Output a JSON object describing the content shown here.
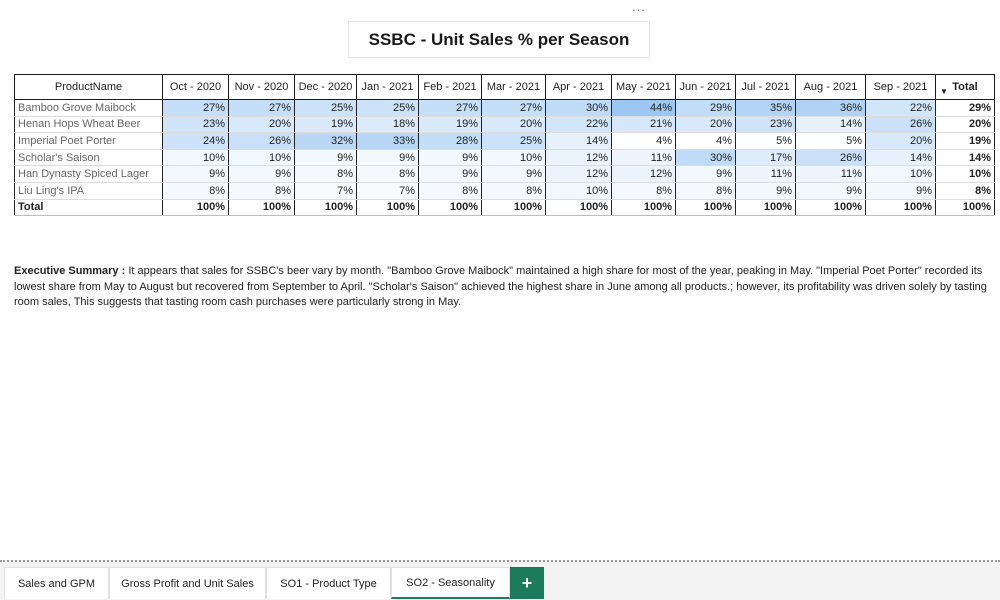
{
  "more_menu": "...",
  "report": {
    "title": "SSBC  -  Unit Sales % per Season"
  },
  "table": {
    "header_name": "ProductName",
    "columns": [
      "Oct - 2020",
      "Nov - 2020",
      "Dec - 2020",
      "Jan - 2021",
      "Feb - 2021",
      "Mar - 2021",
      "Apr - 2021",
      "May - 2021",
      "Jun - 2021",
      "Jul - 2021",
      "Aug - 2021",
      "Sep - 2021"
    ],
    "total_label": "Total",
    "rows": [
      {
        "name": "Bamboo Grove Maibock",
        "values": [
          "27%",
          "27%",
          "25%",
          "25%",
          "27%",
          "27%",
          "30%",
          "44%",
          "29%",
          "35%",
          "36%",
          "22%"
        ],
        "total": "29%"
      },
      {
        "name": "Henan Hops Wheat Beer",
        "values": [
          "23%",
          "20%",
          "19%",
          "18%",
          "19%",
          "20%",
          "22%",
          "21%",
          "20%",
          "23%",
          "14%",
          "26%"
        ],
        "total": "20%"
      },
      {
        "name": "Imperial Poet Porter",
        "values": [
          "24%",
          "26%",
          "32%",
          "33%",
          "28%",
          "25%",
          "14%",
          "4%",
          "4%",
          "5%",
          "5%",
          "20%"
        ],
        "total": "19%"
      },
      {
        "name": "Scholar's Saison",
        "values": [
          "10%",
          "10%",
          "9%",
          "9%",
          "9%",
          "10%",
          "12%",
          "11%",
          "30%",
          "17%",
          "26%",
          "14%"
        ],
        "total": "14%"
      },
      {
        "name": "Han Dynasty Spiced Lager",
        "values": [
          "9%",
          "9%",
          "8%",
          "8%",
          "9%",
          "9%",
          "12%",
          "12%",
          "9%",
          "11%",
          "11%",
          "10%"
        ],
        "total": "10%"
      },
      {
        "name": "Liu Ling's IPA",
        "values": [
          "8%",
          "8%",
          "7%",
          "7%",
          "8%",
          "8%",
          "10%",
          "8%",
          "8%",
          "9%",
          "9%",
          "9%"
        ],
        "total": "8%"
      }
    ],
    "totals_row": {
      "name": "Total",
      "values": [
        "100%",
        "100%",
        "100%",
        "100%",
        "100%",
        "100%",
        "100%",
        "100%",
        "100%",
        "100%",
        "100%",
        "100%"
      ],
      "total": "100%"
    }
  },
  "summary": {
    "label": "Executive Summary :",
    "text": "It appears that sales for SSBC's beer vary by month.  \"Bamboo Grove Maibock\" maintained a high share for most of the year, peaking in May.  \"Imperial Poet Porter\" recorded its lowest share from May to August but recovered from September to April.  \"Scholar's Saison\" achieved the highest share in June among all products.; however, its profitability was driven solely by tasting room sales, This suggests that tasting room cash purchases were particularly strong in May."
  },
  "tabs": [
    {
      "label": "Sales and GPM",
      "active": false
    },
    {
      "label": "Gross Profit and Unit Sales",
      "active": false
    },
    {
      "label": "SO1 - Product Type",
      "active": false
    },
    {
      "label": "SO2 - Seasonality",
      "active": true
    }
  ],
  "add_tab_label": "+",
  "colors": {
    "accent": "#1b7a5a",
    "heat_min": "#ffffff",
    "heat_max": "#9cc7f2"
  }
}
